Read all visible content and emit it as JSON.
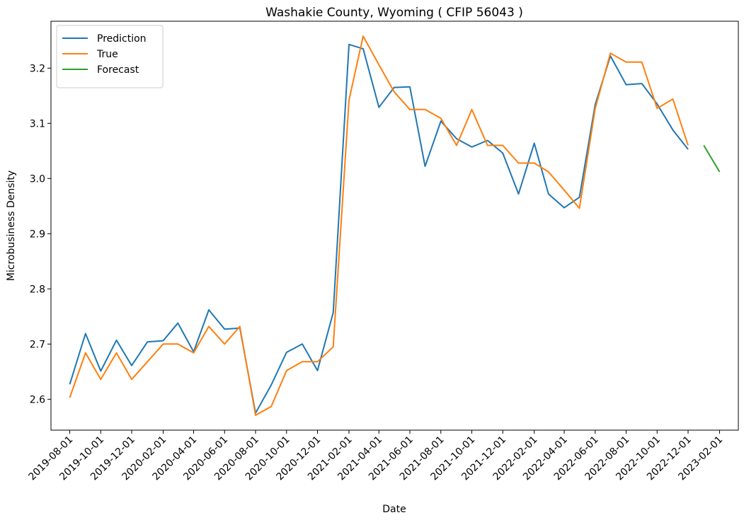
{
  "chart_data": {
    "type": "line",
    "title": "Washakie County, Wyoming ( CFIP 56043 )",
    "xlabel": "Date",
    "ylabel": "Microbusiness Density",
    "ylim": [
      2.544,
      3.285
    ],
    "xlim": [
      "2019-06-25",
      "2023-03-10"
    ],
    "x_ticks": [
      "2019-08-01",
      "2019-10-01",
      "2019-12-01",
      "2020-02-01",
      "2020-04-01",
      "2020-06-01",
      "2020-08-01",
      "2020-10-01",
      "2020-12-01",
      "2021-02-01",
      "2021-04-01",
      "2021-06-01",
      "2021-08-01",
      "2021-10-01",
      "2021-12-01",
      "2022-02-01",
      "2022-04-01",
      "2022-06-01",
      "2022-08-01",
      "2022-10-01",
      "2022-12-01",
      "2023-02-01"
    ],
    "y_ticks": [
      2.6,
      2.7,
      2.8,
      2.9,
      3.0,
      3.1,
      3.2
    ],
    "y_tick_labels": [
      "2.6",
      "2.7",
      "2.8",
      "2.9",
      "3.0",
      "3.1",
      "3.2"
    ],
    "grid": false,
    "legend_position": "top-left",
    "series": [
      {
        "name": "Prediction",
        "color": "#1f77b4",
        "x": [
          "2019-08-01",
          "2019-09-01",
          "2019-10-01",
          "2019-11-01",
          "2019-12-01",
          "2020-01-01",
          "2020-02-01",
          "2020-03-01",
          "2020-04-01",
          "2020-05-01",
          "2020-06-01",
          "2020-07-01",
          "2020-08-01",
          "2020-09-01",
          "2020-10-01",
          "2020-11-01",
          "2020-12-01",
          "2021-01-01",
          "2021-02-01",
          "2021-03-01",
          "2021-04-01",
          "2021-05-01",
          "2021-06-01",
          "2021-07-01",
          "2021-08-01",
          "2021-09-01",
          "2021-10-01",
          "2021-11-01",
          "2021-12-01",
          "2022-01-01",
          "2022-02-01",
          "2022-03-01",
          "2022-04-01",
          "2022-05-01",
          "2022-06-01",
          "2022-07-01",
          "2022-08-01",
          "2022-09-01",
          "2022-10-01",
          "2022-11-01",
          "2022-12-01"
        ],
        "values": [
          2.627,
          2.719,
          2.651,
          2.707,
          2.661,
          2.704,
          2.706,
          2.738,
          2.686,
          2.762,
          2.727,
          2.729,
          2.575,
          2.626,
          2.685,
          2.7,
          2.652,
          2.757,
          3.243,
          3.235,
          3.129,
          3.165,
          3.166,
          3.022,
          3.104,
          3.072,
          3.057,
          3.069,
          3.046,
          2.972,
          3.064,
          2.972,
          2.947,
          2.966,
          3.134,
          3.222,
          3.17,
          3.172,
          3.135,
          3.088,
          3.053
        ]
      },
      {
        "name": "True",
        "color": "#ff7f0e",
        "x": [
          "2019-08-01",
          "2019-09-01",
          "2019-10-01",
          "2019-11-01",
          "2019-12-01",
          "2020-01-01",
          "2020-02-01",
          "2020-03-01",
          "2020-04-01",
          "2020-05-01",
          "2020-06-01",
          "2020-07-01",
          "2020-08-01",
          "2020-09-01",
          "2020-10-01",
          "2020-11-01",
          "2020-12-01",
          "2021-01-01",
          "2021-02-01",
          "2021-03-01",
          "2021-04-01",
          "2021-05-01",
          "2021-06-01",
          "2021-07-01",
          "2021-08-01",
          "2021-09-01",
          "2021-10-01",
          "2021-11-01",
          "2021-12-01",
          "2022-01-01",
          "2022-02-01",
          "2022-03-01",
          "2022-04-01",
          "2022-05-01",
          "2022-06-01",
          "2022-07-01",
          "2022-08-01",
          "2022-09-01",
          "2022-10-01",
          "2022-11-01",
          "2022-12-01"
        ],
        "values": [
          2.603,
          2.684,
          2.636,
          2.684,
          2.636,
          2.668,
          2.7,
          2.7,
          2.684,
          2.732,
          2.7,
          2.732,
          2.571,
          2.587,
          2.652,
          2.668,
          2.668,
          2.695,
          3.142,
          3.258,
          3.206,
          3.157,
          3.125,
          3.125,
          3.109,
          3.06,
          3.125,
          3.06,
          3.06,
          3.028,
          3.028,
          3.012,
          2.979,
          2.946,
          3.127,
          3.227,
          3.211,
          3.211,
          3.127,
          3.144,
          3.06
        ]
      },
      {
        "name": "Forecast",
        "color": "#2ca02c",
        "x": [
          "2023-01-01",
          "2023-02-01"
        ],
        "values": [
          3.06,
          3.012
        ]
      }
    ]
  }
}
